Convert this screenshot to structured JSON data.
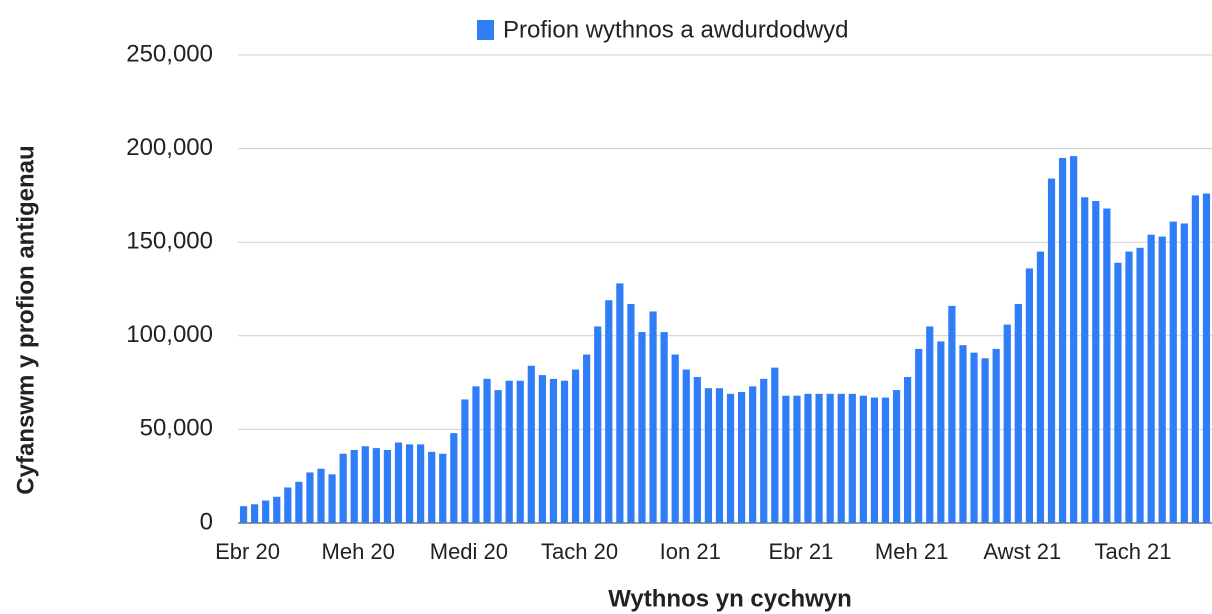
{
  "chart_data": {
    "type": "bar",
    "legend": "Profion wythnos a awdurdodwyd",
    "x_label": "Wythnos yn cychwyn",
    "y_label": "Cyfanswm y profion antigenau",
    "color": "#2f7ef7",
    "grid": true,
    "legend_position": "top",
    "categories": [
      "Ebr 20",
      null,
      null,
      null,
      null,
      null,
      null,
      null,
      null,
      null,
      "Meh 20",
      null,
      null,
      null,
      null,
      null,
      null,
      null,
      null,
      null,
      "Medi 20",
      null,
      null,
      null,
      null,
      null,
      null,
      null,
      null,
      null,
      "Tach 20",
      null,
      null,
      null,
      null,
      null,
      null,
      null,
      null,
      null,
      "Ion 21",
      null,
      null,
      null,
      null,
      null,
      null,
      null,
      null,
      null,
      "Ebr 21",
      null,
      null,
      null,
      null,
      null,
      null,
      null,
      null,
      null,
      "Meh 21",
      null,
      null,
      null,
      null,
      null,
      null,
      null,
      null,
      null,
      "Awst 21",
      null,
      null,
      null,
      null,
      null,
      null,
      null,
      null,
      null,
      "Tach 21",
      null,
      null,
      null,
      null,
      null,
      null,
      null
    ],
    "values": [
      9000,
      10000,
      12000,
      14000,
      19000,
      22000,
      27000,
      29000,
      26000,
      37000,
      39000,
      41000,
      40000,
      39000,
      43000,
      42000,
      42000,
      38000,
      37000,
      48000,
      66000,
      73000,
      77000,
      71000,
      76000,
      76000,
      84000,
      79000,
      77000,
      76000,
      82000,
      90000,
      105000,
      119000,
      128000,
      117000,
      102000,
      113000,
      102000,
      90000,
      82000,
      78000,
      72000,
      72000,
      69000,
      70000,
      73000,
      77000,
      83000,
      68000,
      68000,
      69000,
      69000,
      69000,
      69000,
      69000,
      68000,
      67000,
      67000,
      71000,
      78000,
      93000,
      105000,
      97000,
      116000,
      95000,
      91000,
      88000,
      93000,
      106000,
      117000,
      136000,
      145000,
      184000,
      195000,
      196000,
      174000,
      172000,
      168000,
      139000,
      145000,
      147000,
      154000,
      153000,
      161000,
      160000,
      175000,
      176000
    ],
    "ylim": [
      0,
      250000
    ],
    "yticks": [
      0,
      {
        "value": 50000,
        "label": "50,000"
      },
      {
        "value": 100000,
        "label": "100,000"
      },
      {
        "value": 150000,
        "label": "150,000"
      },
      {
        "value": 200000,
        "label": "200,000"
      },
      {
        "value": 250000,
        "label": "250,000"
      }
    ]
  }
}
